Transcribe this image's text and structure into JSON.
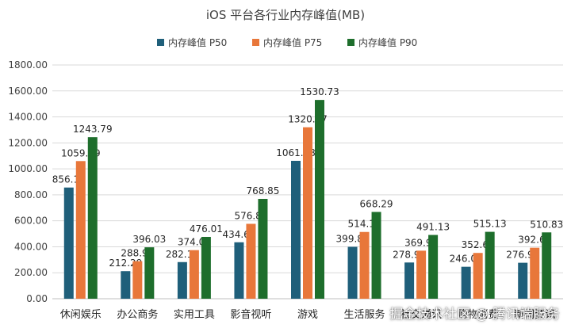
{
  "chart_data": {
    "type": "bar",
    "title": "iOS 平台各行业内存峰值(MB)",
    "categories": [
      "休闲娱乐",
      "办公商务",
      "实用工具",
      "影音视听",
      "游戏",
      "生活服务",
      "社交通讯",
      "购物消费",
      "新闻资讯"
    ],
    "series": [
      {
        "name": "内存峰值 P50",
        "color": "#1f5f7a",
        "values": [
          856.19,
          212.29,
          282.13,
          434.67,
          1061.88,
          399.81,
          278.95,
          246.09,
          276.91
        ]
      },
      {
        "name": "内存峰值 P75",
        "color": "#e8773a",
        "values": [
          1059.99,
          288.98,
          374.09,
          576.81,
          1320.47,
          514.11,
          369.96,
          352.61,
          392.61
        ]
      },
      {
        "name": "内存峰值 P90",
        "color": "#1e6e2c",
        "values": [
          1243.79,
          396.03,
          476.01,
          768.85,
          1530.73,
          668.29,
          491.13,
          515.13,
          510.83
        ]
      }
    ],
    "data_labels": [
      [
        "856.19",
        "212.29",
        "282.13",
        "434.67",
        "1061.88",
        "399.81",
        "278.95",
        "246.09",
        "276.91"
      ],
      [
        "1059.99",
        "288.98",
        "374.09",
        "576.81",
        "1320.47",
        "514.11",
        "369.96",
        "352.61",
        "392.61"
      ],
      [
        "1243.79",
        "396.03",
        "476.01",
        "768.85",
        "1530.73",
        "668.29",
        "491.13",
        "515.13",
        "510.83"
      ]
    ],
    "ylim": [
      0,
      1800
    ],
    "yticks": [
      0,
      200,
      400,
      600,
      800,
      1000,
      1200,
      1400,
      1600,
      1800
    ],
    "ytick_labels": [
      "0.00",
      "200.00",
      "400.00",
      "600.00",
      "800.00",
      "1000.00",
      "1200.00",
      "1400.00",
      "1600.00",
      "1800.00"
    ],
    "grid": true,
    "legend_position": "top"
  },
  "watermark": "掘金技术社区 @ 腾讯端服务"
}
